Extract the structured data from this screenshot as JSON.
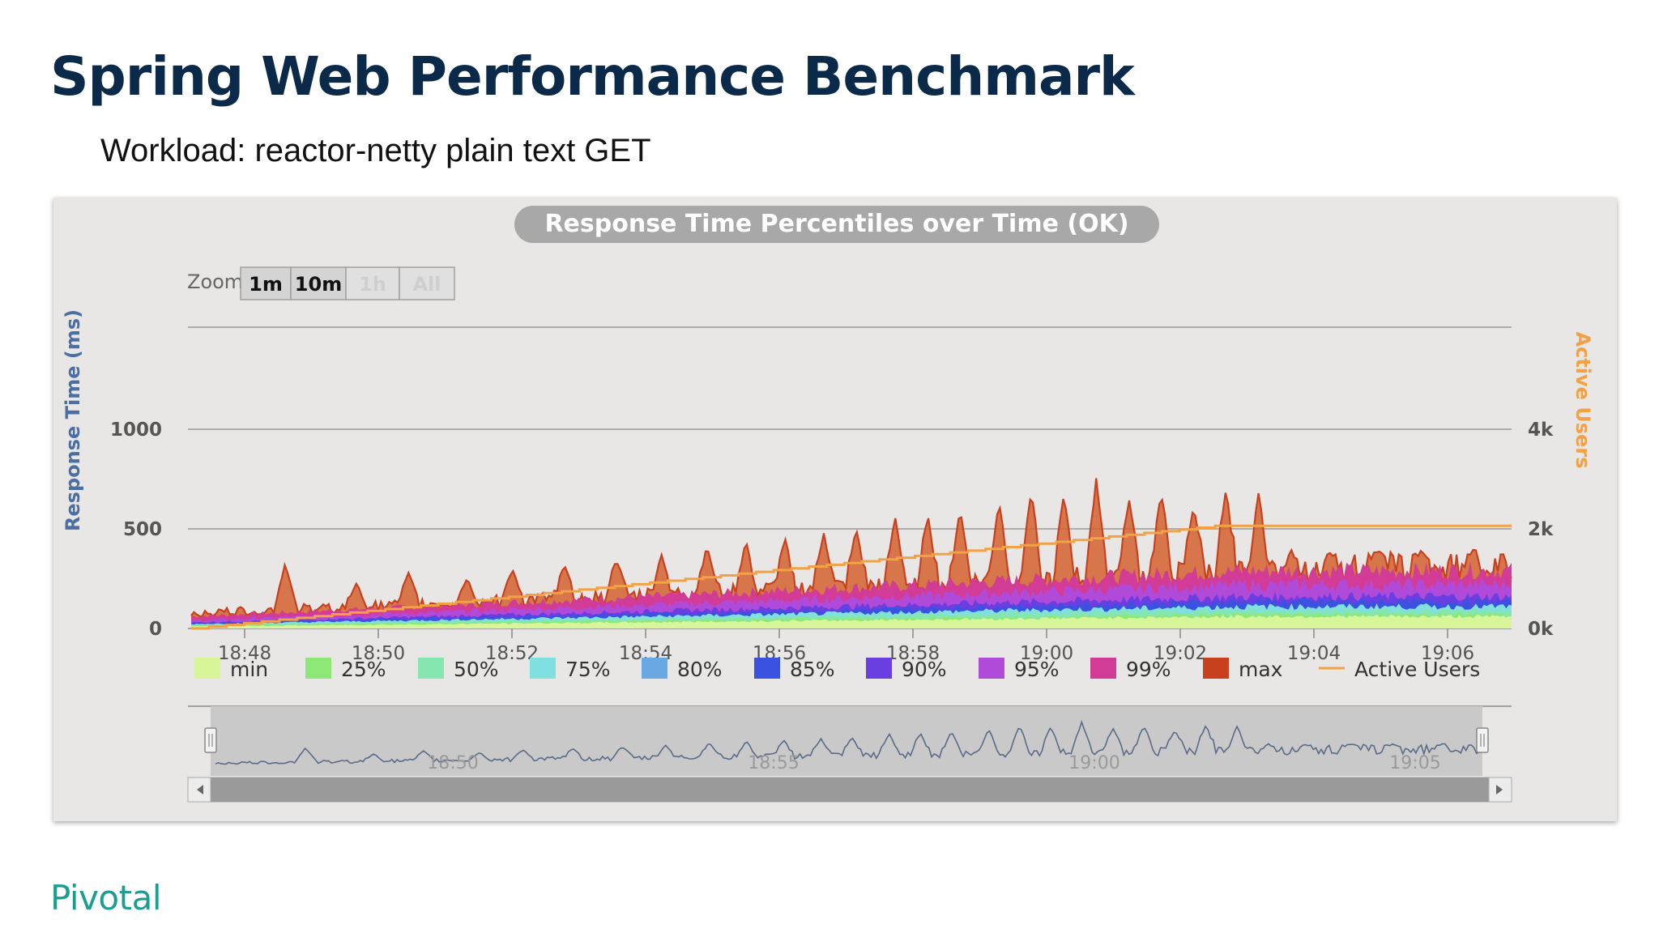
{
  "slide": {
    "title": "Spring Web Performance Benchmark",
    "subtitle": "Workload: reactor-netty plain text GET",
    "brand": "Pivotal"
  },
  "colors": {
    "title": "#0b2a4a",
    "brand": "#1a9e8f",
    "panel_bg": "#e8e7e5",
    "active_users": "#f2a144",
    "y_left_label": "#4a6fa5"
  },
  "zoom": {
    "label": "Zoom",
    "buttons": [
      "1m",
      "10m",
      "1h",
      "All"
    ],
    "enabled": [
      true,
      true,
      false,
      false
    ]
  },
  "chart_data": {
    "type": "area",
    "title": "Response Time Percentiles over Time (OK)",
    "ylabel": "Response Time (ms)",
    "y2label": "Active Users",
    "ylim": [
      0,
      1000
    ],
    "y_ticks": [
      "0",
      "500",
      "1000"
    ],
    "y2_ticks": [
      "0k",
      "2k",
      "4k"
    ],
    "y2lim": [
      0,
      4000
    ],
    "x_ticks": [
      "18:48",
      "18:50",
      "18:52",
      "18:54",
      "18:56",
      "18:58",
      "19:00",
      "19:02",
      "19:04",
      "19:06"
    ],
    "x_range_minutes": [
      18.0,
      38.4
    ],
    "grid": true,
    "legend_position": "bottom",
    "legend": [
      {
        "name": "min",
        "color": "#d8f59a"
      },
      {
        "name": "25%",
        "color": "#8ee878"
      },
      {
        "name": "50%",
        "color": "#86e6b0"
      },
      {
        "name": "75%",
        "color": "#80e0e0"
      },
      {
        "name": "80%",
        "color": "#6aa8e4"
      },
      {
        "name": "85%",
        "color": "#3a52e0"
      },
      {
        "name": "90%",
        "color": "#6a3ee0"
      },
      {
        "name": "95%",
        "color": "#b04ad8"
      },
      {
        "name": "99%",
        "color": "#d23c96"
      },
      {
        "name": "max",
        "color": "#c8401e"
      },
      {
        "name": "Active Users",
        "color": "#f2a144"
      }
    ],
    "percentile_levels_ms": {
      "min": [
        10,
        60
      ],
      "25%": [
        15,
        70
      ],
      "50%": [
        18,
        90
      ],
      "75%": [
        22,
        110
      ],
      "80%": [
        24,
        120
      ],
      "85%": [
        26,
        135
      ],
      "90%": [
        30,
        160
      ],
      "95%": [
        40,
        220
      ],
      "99%": [
        60,
        290
      ]
    },
    "max_peaks": [
      {
        "t": 19.5,
        "v": 330
      },
      {
        "t": 20.6,
        "v": 230
      },
      {
        "t": 21.4,
        "v": 280
      },
      {
        "t": 22.3,
        "v": 250
      },
      {
        "t": 23.0,
        "v": 300
      },
      {
        "t": 23.8,
        "v": 320
      },
      {
        "t": 24.6,
        "v": 350
      },
      {
        "t": 25.3,
        "v": 370
      },
      {
        "t": 26.0,
        "v": 420
      },
      {
        "t": 26.6,
        "v": 440
      },
      {
        "t": 27.2,
        "v": 460
      },
      {
        "t": 27.8,
        "v": 480
      },
      {
        "t": 28.3,
        "v": 500
      },
      {
        "t": 28.9,
        "v": 560
      },
      {
        "t": 29.4,
        "v": 580
      },
      {
        "t": 29.9,
        "v": 600
      },
      {
        "t": 30.5,
        "v": 640
      },
      {
        "t": 31.0,
        "v": 700
      },
      {
        "t": 31.5,
        "v": 680
      },
      {
        "t": 32.0,
        "v": 760
      },
      {
        "t": 32.5,
        "v": 660
      },
      {
        "t": 33.0,
        "v": 690
      },
      {
        "t": 33.5,
        "v": 620
      },
      {
        "t": 34.0,
        "v": 700
      },
      {
        "t": 34.5,
        "v": 680
      },
      {
        "t": 35.0,
        "v": 400
      },
      {
        "t": 35.6,
        "v": 380
      },
      {
        "t": 36.3,
        "v": 400
      },
      {
        "t": 37.0,
        "v": 390
      },
      {
        "t": 37.8,
        "v": 400
      }
    ],
    "max_baseline_ms": [
      80,
      320
    ],
    "active_users": {
      "start": [
        18.0,
        0
      ],
      "ramp_end": [
        32.2,
        2060
      ],
      "end": [
        38.4,
        2060
      ],
      "step_minutes": 0.5
    },
    "navigator": {
      "x_ticks": [
        "18:50",
        "18:55",
        "19:00",
        "19:05"
      ]
    }
  }
}
